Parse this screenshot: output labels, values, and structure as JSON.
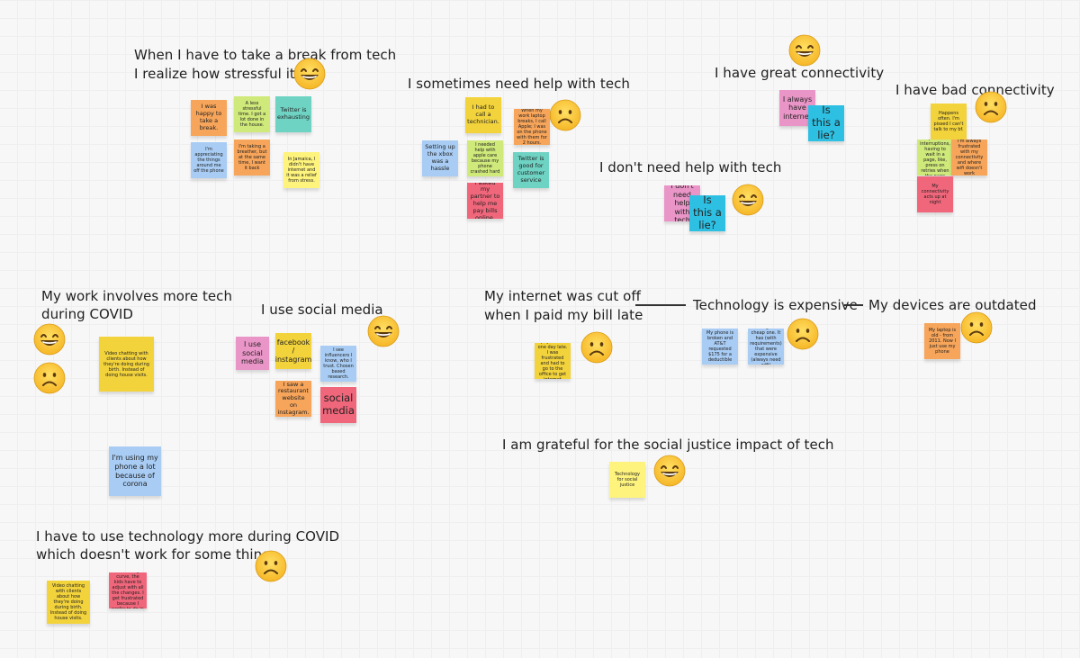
{
  "headings": {
    "break_line1": "When I have to take a break from tech",
    "break_line2": "I realize how stressful it is",
    "help": "I sometimes need help with tech",
    "great_conn": "I have great connectivity",
    "bad_conn": "I have bad connectivity",
    "no_help": "I don't need help with tech",
    "work_line1": "My work involves more tech",
    "work_line2": "during COVID",
    "social": "I use social media",
    "cutoff_line1": "My internet was cut off",
    "cutoff_line2": "when I paid my bill late",
    "expensive": "Technology is expensive",
    "outdated": "My devices are outdated",
    "grateful": "I am grateful for the social justice impact of tech",
    "covid_line1": "I have to use technology more during COVID",
    "covid_line2": "which doesn't work for some things"
  },
  "stickies": {
    "break_happy": "I was happy to take a break.",
    "break_stressful": "A less stressful time. I got a lot done in the house.",
    "break_twitter": "Twitter is exhausting",
    "break_appreciating": "I'm appreciating the things around me off the phone",
    "break_breather": "I'm taking a breather, but at the same time, I want it back",
    "break_jamaica": "In Jamaica, I didn't have internet and it was a relief from stress.",
    "help_technician": "I had to call a technician.",
    "help_work_laptop": "When my work laptop breaks, I call Apple; I was on the phone with them for 2 hours.",
    "help_xbox": "Setting up the xbox was a hassle",
    "help_apple_care": "I needed help with apple care because my phone crashed hard",
    "help_twitter": "Twitter is good for customer service",
    "help_partner": "I asked my partner to help me pay bills online.",
    "great_always": "I always have internet",
    "great_lie": "Is this a lie?",
    "nohelp_dont": "I don't need help with tech",
    "nohelp_lie": "Is this a lie?",
    "bad_happens": "Happens often. I'm pissed I can't talk to my bf.",
    "bad_freezing": "I don't like freezing, repetitive interruptions, having to wait in a page, like, press on retries when the page keeps loading",
    "bad_frustrated": "I'm always frustrated with my connectivity and where wifi doesn't work",
    "bad_night": "My connectivity acts up at night",
    "work_video": "Video chatting with clients about how they're doing during birth. Instead of doing house visits.",
    "social_use": "I use social media",
    "social_fb": "facebook / instagram",
    "social_influencers": "I see influencers I know, who I trust. Chosen based research.",
    "social_restaurant": "I saw a restaurant website on instagram.",
    "social_media": "social media",
    "cutoff_paid": "I payed a bill one day late. I was frustrated and had to go to the office to get internet",
    "exp_phone": "My phone is broken and AT&T requested $175 for a deductible",
    "exp_cheap": "I bought a cheap one. It has (with requirements) that were expensive (always need wifi)",
    "outdated_laptop": "My laptop is old - from 2011. Now I just use my phone",
    "covid_phone": "I'm using my phone a lot because of corona",
    "grateful_tech": "Technology for social justice",
    "covid_video": "Video chatting with clients about how they're doing during birth. Instead of doing house visits.",
    "covid_school": "School takes a learning curve, the kids have to adjust with all the changes. I get frustrated because I prefer to do in person"
  },
  "colors": {
    "canvas": "#f7f7f7",
    "grid": "#e4e4e4",
    "yellow": "#fef37c",
    "gold": "#f3d33c",
    "orange": "#f7a55a",
    "blue": "#a8ccf4",
    "teal": "#6fd3c4",
    "green": "#cfe97a",
    "pink": "#ea95c7",
    "red": "#f0667b",
    "cyan": "#2ec0e3",
    "emoji_face": "#fbc53d"
  },
  "icons": {
    "happy": "grinning-face-icon",
    "sad": "frowning-face-icon"
  }
}
